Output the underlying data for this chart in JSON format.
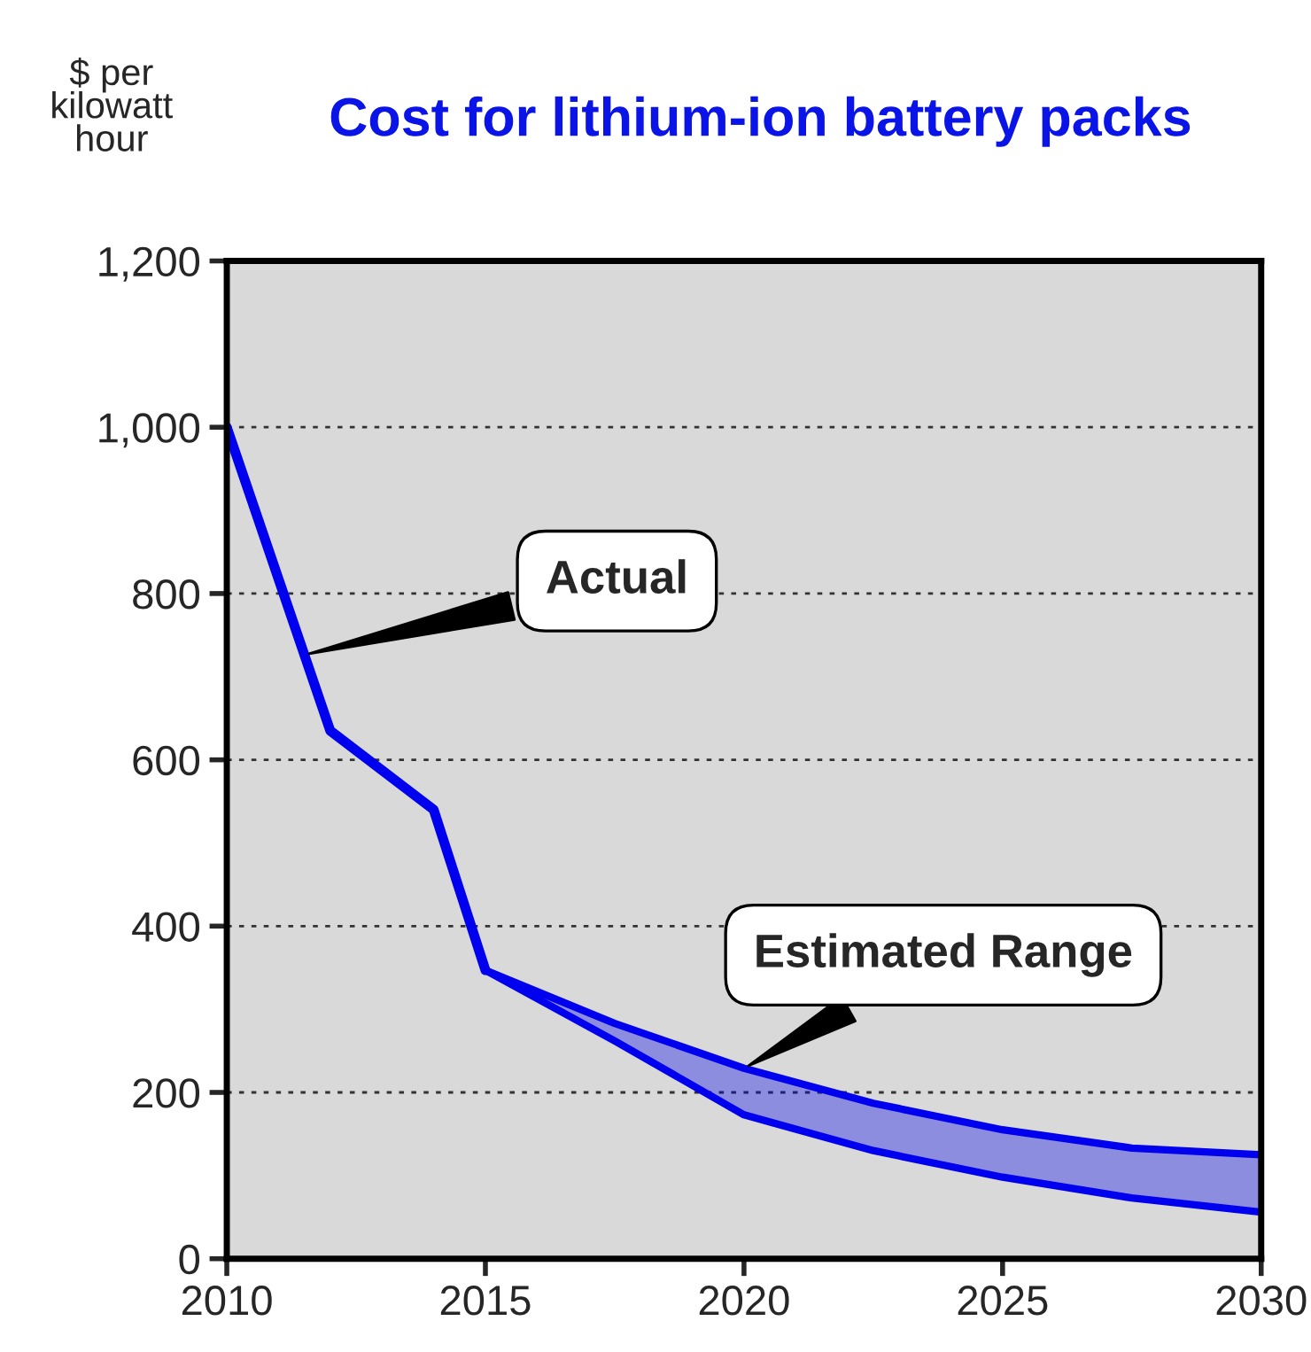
{
  "chart_data": {
    "type": "line",
    "title": "Cost for lithium-ion battery packs",
    "ylabel": "$ per\nkilowatt\nhour",
    "series": [
      {
        "name": "Actual",
        "color": "#0000ee",
        "x": [
          2010,
          2012,
          2014,
          2015
        ],
        "values": [
          1000,
          635,
          540,
          347
        ]
      },
      {
        "name": "Estimated Range",
        "color": "#0000ee",
        "x": [
          2015,
          2017.5,
          2020,
          2022.5,
          2025,
          2027.5,
          2030
        ],
        "values": [
          347,
          283,
          229,
          187,
          155,
          133,
          125
        ],
        "lower": [
          347,
          262,
          173,
          130,
          98,
          73,
          56
        ],
        "upper": [
          347,
          283,
          229,
          187,
          155,
          133,
          125
        ]
      },
      {
        "color": "#0000ee",
        "x": [
          2015,
          2017.5,
          2020,
          2022.5,
          2025,
          2027.5,
          2030
        ],
        "values": [
          347,
          262,
          173,
          130,
          98,
          73,
          56
        ]
      }
    ],
    "xlim": [
      2010,
      2030
    ],
    "xticks": [
      2010,
      2015,
      2020,
      2025,
      2030
    ],
    "ylim": [
      0,
      1200
    ],
    "yticks": [
      0,
      200,
      400,
      600,
      800,
      {
        "value": 1000,
        "label": "1,000"
      },
      {
        "value": 1200,
        "label": "1,200"
      }
    ],
    "grid": "y",
    "legend": false
  }
}
